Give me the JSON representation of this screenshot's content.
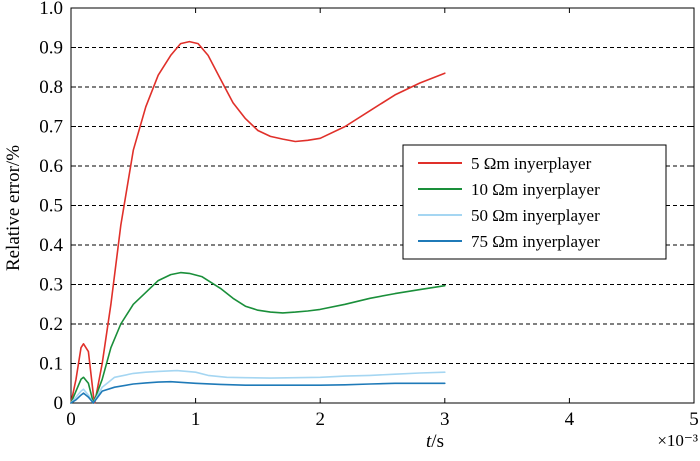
{
  "chart_data": {
    "type": "line",
    "xlabel": "t/s",
    "ylabel": "Relative error/%",
    "exponent_label": "×10⁻³",
    "xlim": [
      0,
      5
    ],
    "ylim": [
      0,
      1.0
    ],
    "x_ticks": [
      "0",
      "1",
      "2",
      "3",
      "4",
      "5"
    ],
    "y_ticks": [
      "0",
      "0.1",
      "0.2",
      "0.3",
      "0.4",
      "0.5",
      "0.6",
      "0.7",
      "0.8",
      "0.9",
      "1.0"
    ],
    "grid": "horizontal-dashed",
    "legend_position": "right",
    "series": [
      {
        "name": "5 Ωm inyerplayer",
        "color": "#e0302a",
        "points": [
          [
            0.0,
            0.0
          ],
          [
            0.04,
            0.06
          ],
          [
            0.08,
            0.14
          ],
          [
            0.1,
            0.15
          ],
          [
            0.14,
            0.13
          ],
          [
            0.18,
            0.02
          ],
          [
            0.19,
            0.0
          ],
          [
            0.25,
            0.1
          ],
          [
            0.32,
            0.25
          ],
          [
            0.4,
            0.45
          ],
          [
            0.5,
            0.64
          ],
          [
            0.6,
            0.75
          ],
          [
            0.7,
            0.83
          ],
          [
            0.8,
            0.88
          ],
          [
            0.88,
            0.91
          ],
          [
            0.95,
            0.915
          ],
          [
            1.02,
            0.91
          ],
          [
            1.1,
            0.88
          ],
          [
            1.2,
            0.82
          ],
          [
            1.3,
            0.76
          ],
          [
            1.4,
            0.72
          ],
          [
            1.5,
            0.69
          ],
          [
            1.6,
            0.675
          ],
          [
            1.7,
            0.668
          ],
          [
            1.8,
            0.662
          ],
          [
            1.9,
            0.665
          ],
          [
            2.0,
            0.67
          ],
          [
            2.2,
            0.7
          ],
          [
            2.4,
            0.74
          ],
          [
            2.6,
            0.78
          ],
          [
            2.8,
            0.81
          ],
          [
            3.0,
            0.835
          ]
        ]
      },
      {
        "name": "10 Ωm inyerplayer",
        "color": "#1a8f3a",
        "points": [
          [
            0.0,
            0.0
          ],
          [
            0.04,
            0.03
          ],
          [
            0.08,
            0.06
          ],
          [
            0.1,
            0.065
          ],
          [
            0.14,
            0.05
          ],
          [
            0.18,
            0.0
          ],
          [
            0.25,
            0.06
          ],
          [
            0.32,
            0.14
          ],
          [
            0.4,
            0.2
          ],
          [
            0.5,
            0.25
          ],
          [
            0.6,
            0.28
          ],
          [
            0.7,
            0.31
          ],
          [
            0.8,
            0.325
          ],
          [
            0.88,
            0.33
          ],
          [
            0.95,
            0.328
          ],
          [
            1.05,
            0.32
          ],
          [
            1.2,
            0.29
          ],
          [
            1.3,
            0.265
          ],
          [
            1.4,
            0.245
          ],
          [
            1.5,
            0.235
          ],
          [
            1.6,
            0.23
          ],
          [
            1.7,
            0.228
          ],
          [
            1.8,
            0.23
          ],
          [
            1.9,
            0.233
          ],
          [
            2.0,
            0.237
          ],
          [
            2.2,
            0.25
          ],
          [
            2.4,
            0.265
          ],
          [
            2.6,
            0.277
          ],
          [
            2.8,
            0.287
          ],
          [
            3.0,
            0.297
          ]
        ]
      },
      {
        "name": "50 Ωm inyerplayer",
        "color": "#a5d6f2",
        "points": [
          [
            0.0,
            0.0
          ],
          [
            0.04,
            0.015
          ],
          [
            0.08,
            0.03
          ],
          [
            0.1,
            0.035
          ],
          [
            0.14,
            0.02
          ],
          [
            0.18,
            0.0
          ],
          [
            0.25,
            0.04
          ],
          [
            0.35,
            0.065
          ],
          [
            0.5,
            0.075
          ],
          [
            0.6,
            0.078
          ],
          [
            0.7,
            0.08
          ],
          [
            0.85,
            0.082
          ],
          [
            1.0,
            0.078
          ],
          [
            1.1,
            0.07
          ],
          [
            1.25,
            0.065
          ],
          [
            1.4,
            0.064
          ],
          [
            1.6,
            0.063
          ],
          [
            1.8,
            0.064
          ],
          [
            2.0,
            0.065
          ],
          [
            2.2,
            0.068
          ],
          [
            2.4,
            0.07
          ],
          [
            2.6,
            0.073
          ],
          [
            2.8,
            0.076
          ],
          [
            3.0,
            0.078
          ]
        ]
      },
      {
        "name": "75 Ωm inyerplayer",
        "color": "#1f7ab8",
        "points": [
          [
            0.0,
            0.0
          ],
          [
            0.04,
            0.008
          ],
          [
            0.08,
            0.02
          ],
          [
            0.1,
            0.025
          ],
          [
            0.14,
            0.015
          ],
          [
            0.18,
            0.0
          ],
          [
            0.25,
            0.03
          ],
          [
            0.35,
            0.04
          ],
          [
            0.5,
            0.048
          ],
          [
            0.6,
            0.051
          ],
          [
            0.7,
            0.053
          ],
          [
            0.8,
            0.054
          ],
          [
            1.0,
            0.05
          ],
          [
            1.2,
            0.047
          ],
          [
            1.4,
            0.045
          ],
          [
            1.6,
            0.045
          ],
          [
            1.8,
            0.045
          ],
          [
            2.0,
            0.045
          ],
          [
            2.2,
            0.046
          ],
          [
            2.4,
            0.048
          ],
          [
            2.6,
            0.05
          ],
          [
            2.8,
            0.05
          ],
          [
            3.0,
            0.05
          ]
        ]
      }
    ]
  }
}
